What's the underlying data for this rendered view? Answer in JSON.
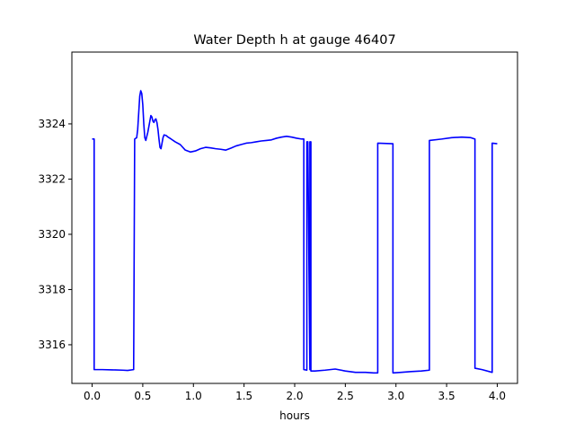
{
  "chart_data": {
    "type": "line",
    "title": "Water Depth h at gauge 46407",
    "xlabel": "hours",
    "ylabel": "",
    "xlim": [
      -0.2,
      4.2
    ],
    "ylim": [
      3314.6,
      3326.6
    ],
    "xticks": [
      0.0,
      0.5,
      1.0,
      1.5,
      2.0,
      2.5,
      3.0,
      3.5,
      4.0
    ],
    "xtick_labels": [
      "0.0",
      "0.5",
      "1.0",
      "1.5",
      "2.0",
      "2.5",
      "3.0",
      "3.5",
      "4.0"
    ],
    "yticks": [
      3316,
      3318,
      3320,
      3322,
      3324
    ],
    "ytick_labels": [
      "3316",
      "3318",
      "3320",
      "3322",
      "3324"
    ],
    "grid": false,
    "series": [
      {
        "color": "#0000ff",
        "x": [
          0.0,
          0.02,
          0.02,
          0.1,
          0.2,
          0.3,
          0.35,
          0.41,
          0.42,
          0.42,
          0.44,
          0.45,
          0.46,
          0.47,
          0.48,
          0.49,
          0.5,
          0.51,
          0.52,
          0.53,
          0.55,
          0.57,
          0.58,
          0.59,
          0.6,
          0.61,
          0.62,
          0.63,
          0.64,
          0.65,
          0.66,
          0.67,
          0.68,
          0.69,
          0.7,
          0.71,
          0.73,
          0.75,
          0.78,
          0.82,
          0.87,
          0.92,
          0.97,
          1.02,
          1.07,
          1.12,
          1.17,
          1.22,
          1.27,
          1.32,
          1.37,
          1.42,
          1.47,
          1.52,
          1.57,
          1.62,
          1.67,
          1.72,
          1.77,
          1.82,
          1.87,
          1.92,
          1.97,
          2.02,
          2.07,
          2.09,
          2.09,
          2.12,
          2.12,
          2.13,
          2.15,
          2.15,
          2.16,
          2.16,
          2.2,
          2.3,
          2.4,
          2.5,
          2.6,
          2.7,
          2.78,
          2.82,
          2.82,
          2.97,
          2.97,
          3.05,
          3.15,
          3.25,
          3.33,
          3.33,
          3.45,
          3.55,
          3.65,
          3.74,
          3.78,
          3.78,
          3.85,
          3.95,
          3.95,
          4.0
        ],
        "y": [
          3323.45,
          3323.45,
          3315.1,
          3315.1,
          3315.09,
          3315.08,
          3315.07,
          3315.1,
          3323.45,
          3323.45,
          3323.5,
          3323.8,
          3324.4,
          3325.0,
          3325.2,
          3325.1,
          3324.7,
          3324.0,
          3323.5,
          3323.4,
          3323.7,
          3324.1,
          3324.3,
          3324.25,
          3324.1,
          3324.05,
          3324.15,
          3324.18,
          3324.05,
          3323.8,
          3323.45,
          3323.15,
          3323.1,
          3323.3,
          3323.5,
          3323.6,
          3323.58,
          3323.52,
          3323.45,
          3323.35,
          3323.25,
          3323.05,
          3322.98,
          3323.02,
          3323.1,
          3323.15,
          3323.13,
          3323.1,
          3323.08,
          3323.05,
          3323.12,
          3323.2,
          3323.25,
          3323.3,
          3323.32,
          3323.35,
          3323.38,
          3323.4,
          3323.42,
          3323.48,
          3323.52,
          3323.55,
          3323.52,
          3323.48,
          3323.45,
          3323.45,
          3315.1,
          3315.08,
          3323.35,
          3323.35,
          3315.1,
          3323.35,
          3323.35,
          3315.05,
          3315.05,
          3315.08,
          3315.12,
          3315.05,
          3315.0,
          3315.0,
          3314.98,
          3314.98,
          3323.3,
          3323.28,
          3314.98,
          3315.0,
          3315.03,
          3315.05,
          3315.08,
          3323.4,
          3323.45,
          3323.5,
          3323.52,
          3323.5,
          3323.45,
          3315.15,
          3315.1,
          3315.0,
          3323.3,
          3323.28
        ]
      }
    ]
  }
}
